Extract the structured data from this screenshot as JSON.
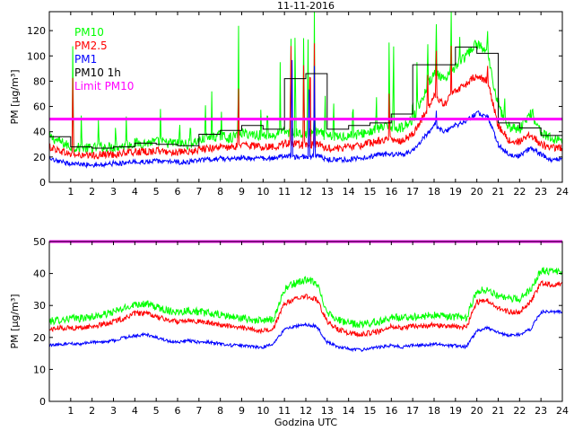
{
  "chart_data": [
    {
      "type": "line",
      "title": "11-11-2016",
      "xlabel": "",
      "ylabel": "PM [µg/m³]",
      "xlim": [
        0,
        24
      ],
      "ylim": [
        0,
        135
      ],
      "xticks": [
        1,
        2,
        3,
        4,
        5,
        6,
        7,
        8,
        9,
        10,
        11,
        12,
        13,
        14,
        15,
        16,
        17,
        18,
        19,
        20,
        21,
        22,
        23,
        24
      ],
      "yticks": [
        0,
        20,
        40,
        60,
        80,
        100,
        120
      ],
      "legend_position": "top-left",
      "colors": {
        "PM1": "#0000ff",
        "PM2.5": "#ff0000",
        "PM10": "#00ff00",
        "PM10 1h": "#000000",
        "Limit PM10": "#ff00ff"
      },
      "series": [
        {
          "name": "PM1",
          "x": [
            0,
            0.5,
            1,
            1.5,
            2,
            2.5,
            3,
            3.5,
            4,
            4.5,
            5,
            5.5,
            6,
            6.5,
            7,
            7.5,
            8,
            8.5,
            9,
            9.5,
            10,
            10.5,
            11,
            11.5,
            12,
            12.5,
            13,
            13.5,
            14,
            14.5,
            15,
            15.5,
            16,
            16.5,
            17,
            17.5,
            18,
            18.5,
            19,
            19.5,
            20,
            20.5,
            21,
            21.5,
            22,
            22.5,
            23,
            23.5
          ],
          "values": [
            18,
            16,
            15,
            14,
            14,
            14,
            15,
            15,
            16,
            16,
            17,
            16,
            16,
            16,
            17,
            18,
            19,
            18,
            20,
            19,
            19,
            19,
            21,
            20,
            20,
            21,
            18,
            18,
            18,
            19,
            20,
            22,
            22,
            22,
            25,
            35,
            45,
            40,
            45,
            48,
            55,
            52,
            30,
            22,
            21,
            27,
            22,
            18
          ]
        },
        {
          "name": "PM2.5",
          "x": [
            0,
            0.5,
            1,
            1.5,
            2,
            2.5,
            3,
            3.5,
            4,
            4.5,
            5,
            5.5,
            6,
            6.5,
            7,
            7.5,
            8,
            8.5,
            9,
            9.5,
            10,
            10.5,
            11,
            11.5,
            12,
            12.5,
            13,
            13.5,
            14,
            14.5,
            15,
            15.5,
            16,
            16.5,
            17,
            17.5,
            18,
            18.5,
            19,
            19.5,
            20,
            20.5,
            21,
            21.5,
            22,
            22.5,
            23,
            23.5
          ],
          "values": [
            28,
            25,
            22,
            21,
            21,
            22,
            22,
            23,
            24,
            24,
            25,
            24,
            24,
            23,
            26,
            27,
            28,
            27,
            30,
            29,
            28,
            28,
            31,
            30,
            29,
            30,
            27,
            27,
            28,
            29,
            31,
            33,
            34,
            33,
            38,
            52,
            68,
            62,
            72,
            78,
            85,
            80,
            45,
            33,
            32,
            38,
            30,
            27
          ]
        },
        {
          "name": "PM10",
          "x": [
            0,
            0.5,
            1,
            1.5,
            2,
            2.5,
            3,
            3.5,
            4,
            4.5,
            5,
            5.5,
            6,
            6.5,
            7,
            7.5,
            8,
            8.5,
            9,
            9.5,
            10,
            10.5,
            11,
            11.5,
            12,
            12.5,
            13,
            13.5,
            14,
            14.5,
            15,
            15.5,
            16,
            16.5,
            17,
            17.5,
            18,
            18.5,
            19,
            19.5,
            20,
            20.5,
            21,
            21.5,
            22,
            22.5,
            23,
            23.5
          ],
          "values": [
            36,
            32,
            28,
            27,
            27,
            28,
            28,
            29,
            31,
            31,
            32,
            31,
            31,
            30,
            33,
            35,
            37,
            35,
            39,
            38,
            37,
            37,
            40,
            39,
            38,
            40,
            36,
            36,
            37,
            38,
            40,
            43,
            44,
            43,
            50,
            68,
            88,
            80,
            92,
            100,
            110,
            102,
            60,
            44,
            42,
            55,
            40,
            34
          ]
        },
        {
          "name": "PM10 1h",
          "x": [
            0,
            1,
            2,
            3,
            4,
            5,
            6,
            7,
            8,
            9,
            10,
            11,
            12,
            13,
            14,
            15,
            16,
            17,
            18,
            19,
            20,
            21,
            22,
            23
          ],
          "values": [
            36,
            28,
            27,
            28,
            31,
            30,
            29,
            38,
            41,
            45,
            42,
            82,
            86,
            42,
            45,
            47,
            54,
            93,
            93,
            107,
            102,
            47,
            43,
            37
          ]
        },
        {
          "name": "Limit PM10",
          "x": [
            0,
            24
          ],
          "values": [
            50,
            50
          ]
        }
      ],
      "spikes": {
        "PM10": [
          [
            1.1,
            130
          ],
          [
            1.5,
            60
          ],
          [
            2.3,
            55
          ],
          [
            3.1,
            48
          ],
          [
            3.6,
            52
          ],
          [
            5.2,
            58
          ],
          [
            6.1,
            50
          ],
          [
            6.6,
            52
          ],
          [
            7.3,
            68
          ],
          [
            7.6,
            72
          ],
          [
            8.05,
            58
          ],
          [
            8.85,
            135
          ],
          [
            9.9,
            62
          ],
          [
            10.2,
            67
          ],
          [
            10.8,
            95
          ],
          [
            11.3,
            135
          ],
          [
            11.5,
            135
          ],
          [
            11.9,
            135
          ],
          [
            12.1,
            135
          ],
          [
            12.4,
            135
          ],
          [
            12.9,
            77
          ],
          [
            13.3,
            70
          ],
          [
            14.2,
            72
          ],
          [
            15.3,
            75
          ],
          [
            15.9,
            130
          ],
          [
            16.1,
            125
          ],
          [
            17.0,
            70
          ],
          [
            17.2,
            95
          ],
          [
            17.7,
            118
          ],
          [
            18.1,
            135
          ],
          [
            18.8,
            135
          ],
          [
            19.2,
            115
          ],
          [
            20.5,
            125
          ],
          [
            21.0,
            75
          ],
          [
            21.3,
            70
          ],
          [
            22.6,
            62
          ]
        ],
        "PM2.5": [
          [
            1.1,
            100
          ],
          [
            8.85,
            80
          ],
          [
            11.3,
            130
          ],
          [
            11.9,
            110
          ],
          [
            12.2,
            125
          ],
          [
            12.4,
            110
          ],
          [
            15.9,
            80
          ],
          [
            17.7,
            92
          ],
          [
            18.1,
            115
          ],
          [
            18.8,
            108
          ],
          [
            20.5,
            95
          ]
        ],
        "PM1": [
          [
            11.35,
            135
          ],
          [
            12.15,
            100
          ],
          [
            12.4,
            92
          ],
          [
            18.1,
            60
          ]
        ]
      }
    },
    {
      "type": "line",
      "title": "",
      "xlabel": "Godzina UTC",
      "ylabel": "PM [µg/m³]",
      "xlim": [
        0,
        24
      ],
      "ylim": [
        0,
        50
      ],
      "xticks": [
        1,
        2,
        3,
        4,
        5,
        6,
        7,
        8,
        9,
        10,
        11,
        12,
        13,
        14,
        15,
        16,
        17,
        18,
        19,
        20,
        21,
        22,
        23,
        24
      ],
      "yticks": [
        0,
        10,
        20,
        30,
        40,
        50
      ],
      "series": [
        {
          "name": "PM1",
          "x": [
            0,
            0.5,
            1,
            1.5,
            2,
            2.5,
            3,
            3.5,
            4,
            4.5,
            5,
            5.5,
            6,
            6.5,
            7,
            7.5,
            8,
            8.5,
            9,
            9.5,
            10,
            10.5,
            11,
            11.5,
            12,
            12.5,
            13,
            13.5,
            14,
            14.5,
            15,
            15.5,
            16,
            16.5,
            17,
            17.5,
            18,
            18.5,
            19,
            19.5,
            20,
            20.5,
            21,
            21.5,
            22,
            22.5,
            23,
            23.5
          ],
          "values": [
            17.5,
            17.8,
            18,
            18,
            18.5,
            18.5,
            19,
            20,
            20.5,
            21,
            20,
            19,
            18.5,
            19,
            18.5,
            18.5,
            18,
            17.5,
            17.5,
            17,
            17,
            18,
            22.5,
            23.5,
            24,
            23.5,
            18.5,
            17,
            16.5,
            16,
            16.5,
            17,
            17.5,
            17,
            17.5,
            17.5,
            18,
            17.5,
            17.5,
            17,
            22,
            23,
            21.5,
            20.5,
            21,
            22.5,
            28,
            28
          ]
        },
        {
          "name": "PM2.5",
          "x": [
            0,
            0.5,
            1,
            1.5,
            2,
            2.5,
            3,
            3.5,
            4,
            4.5,
            5,
            5.5,
            6,
            6.5,
            7,
            7.5,
            8,
            8.5,
            9,
            9.5,
            10,
            10.5,
            11,
            11.5,
            12,
            12.5,
            13,
            13.5,
            14,
            14.5,
            15,
            15.5,
            16,
            16.5,
            17,
            17.5,
            18,
            18.5,
            19,
            19.5,
            20,
            20.5,
            21,
            21.5,
            22,
            22.5,
            23,
            23.5
          ],
          "values": [
            22.5,
            23,
            23,
            23,
            23.5,
            24,
            25,
            26,
            27.5,
            27.5,
            26.5,
            25.5,
            25,
            25.5,
            25,
            24.5,
            24,
            23.5,
            23,
            22.5,
            22,
            23,
            30.5,
            32,
            33,
            32,
            25,
            22.5,
            21.5,
            21,
            21.5,
            22,
            23.5,
            23,
            23.5,
            23.5,
            24,
            23.5,
            23.5,
            23,
            31,
            31.5,
            29,
            28,
            28,
            31,
            37,
            36.5
          ]
        },
        {
          "name": "PM10",
          "x": [
            0,
            0.5,
            1,
            1.5,
            2,
            2.5,
            3,
            3.5,
            4,
            4.5,
            5,
            5.5,
            6,
            6.5,
            7,
            7.5,
            8,
            8.5,
            9,
            9.5,
            10,
            10.5,
            11,
            11.5,
            12,
            12.5,
            13,
            13.5,
            14,
            14.5,
            15,
            15.5,
            16,
            16.5,
            17,
            17.5,
            18,
            18.5,
            19,
            19.5,
            20,
            20.5,
            21,
            21.5,
            22,
            22.5,
            23,
            23.5
          ],
          "values": [
            25,
            25.5,
            26,
            26,
            26.5,
            27,
            28,
            29,
            30.5,
            30.5,
            29.5,
            28.5,
            28,
            28.5,
            28,
            27.5,
            27,
            26.5,
            26,
            25.5,
            25,
            26,
            35,
            37,
            38,
            37,
            28,
            25.5,
            24.5,
            24,
            24.5,
            25,
            26.5,
            26,
            26.5,
            26.5,
            27,
            26.5,
            26.5,
            26,
            34.5,
            35,
            33,
            32,
            32,
            35,
            41,
            40.5
          ]
        },
        {
          "name": "Limit PM10",
          "x": [
            0,
            24
          ],
          "values": [
            50,
            50
          ]
        }
      ]
    }
  ]
}
